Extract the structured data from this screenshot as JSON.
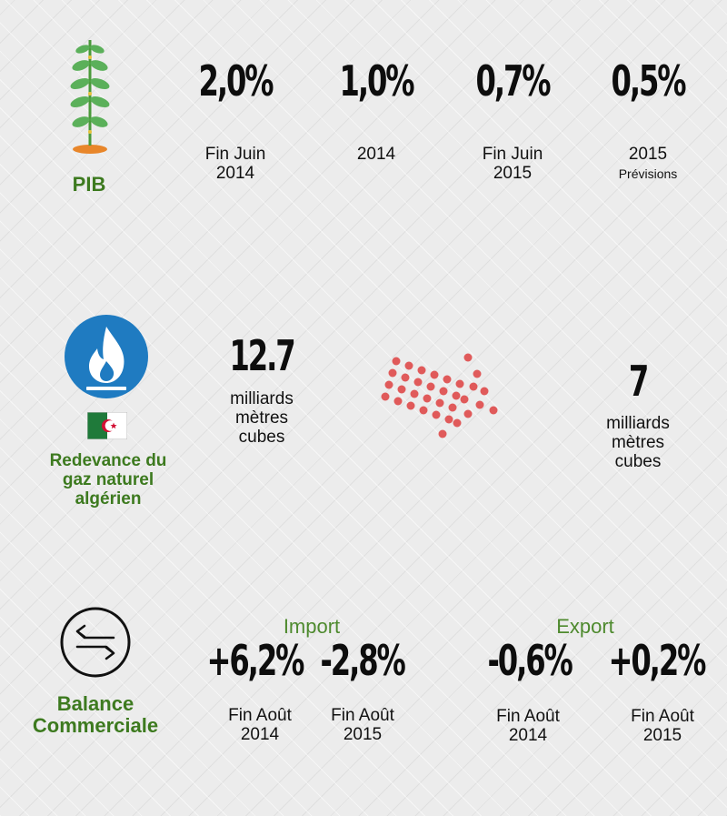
{
  "pib": {
    "title": "PIB",
    "stats": [
      {
        "value": "2,0%",
        "label1": "Fin Juin",
        "label2": "2014"
      },
      {
        "value": "1,0%",
        "label1": "2014",
        "label2": ""
      },
      {
        "value": "0,7%",
        "label1": "Fin Juin",
        "label2": "2015"
      },
      {
        "value": "0,5%",
        "label1": "2015",
        "label2": "Prévisions"
      }
    ]
  },
  "gaz": {
    "title_lines": [
      "Redevance du",
      "gaz naturel",
      "algérien"
    ],
    "before": {
      "value": "12.7",
      "unit_lines": [
        "milliards",
        "mètres",
        "cubes"
      ]
    },
    "after": {
      "value": "7",
      "unit_lines": [
        "milliards",
        "mètres",
        "cubes"
      ]
    },
    "arrow_color": "#e05a5a"
  },
  "balance": {
    "title_lines": [
      "Balance",
      "Commerciale"
    ],
    "import": {
      "heading": "Import",
      "stats": [
        {
          "value": "+6,2%",
          "label1": "Fin Août",
          "label2": "2014"
        },
        {
          "value": "-2,8%",
          "label1": "Fin Août",
          "label2": "2015"
        }
      ]
    },
    "export": {
      "heading": "Export",
      "stats": [
        {
          "value": "-0,6%",
          "label1": "Fin Août",
          "label2": "2014"
        },
        {
          "value": "+0,2%",
          "label1": "Fin Août",
          "label2": "2015"
        }
      ]
    }
  },
  "colors": {
    "green_title": "#3d7a1f",
    "flame_circle": "#1f7bc1",
    "dots": "#e05a5a"
  },
  "icons": [
    "plant-icon",
    "gas-flame-icon",
    "algeria-flag-icon",
    "exchange-arrows-icon"
  ]
}
